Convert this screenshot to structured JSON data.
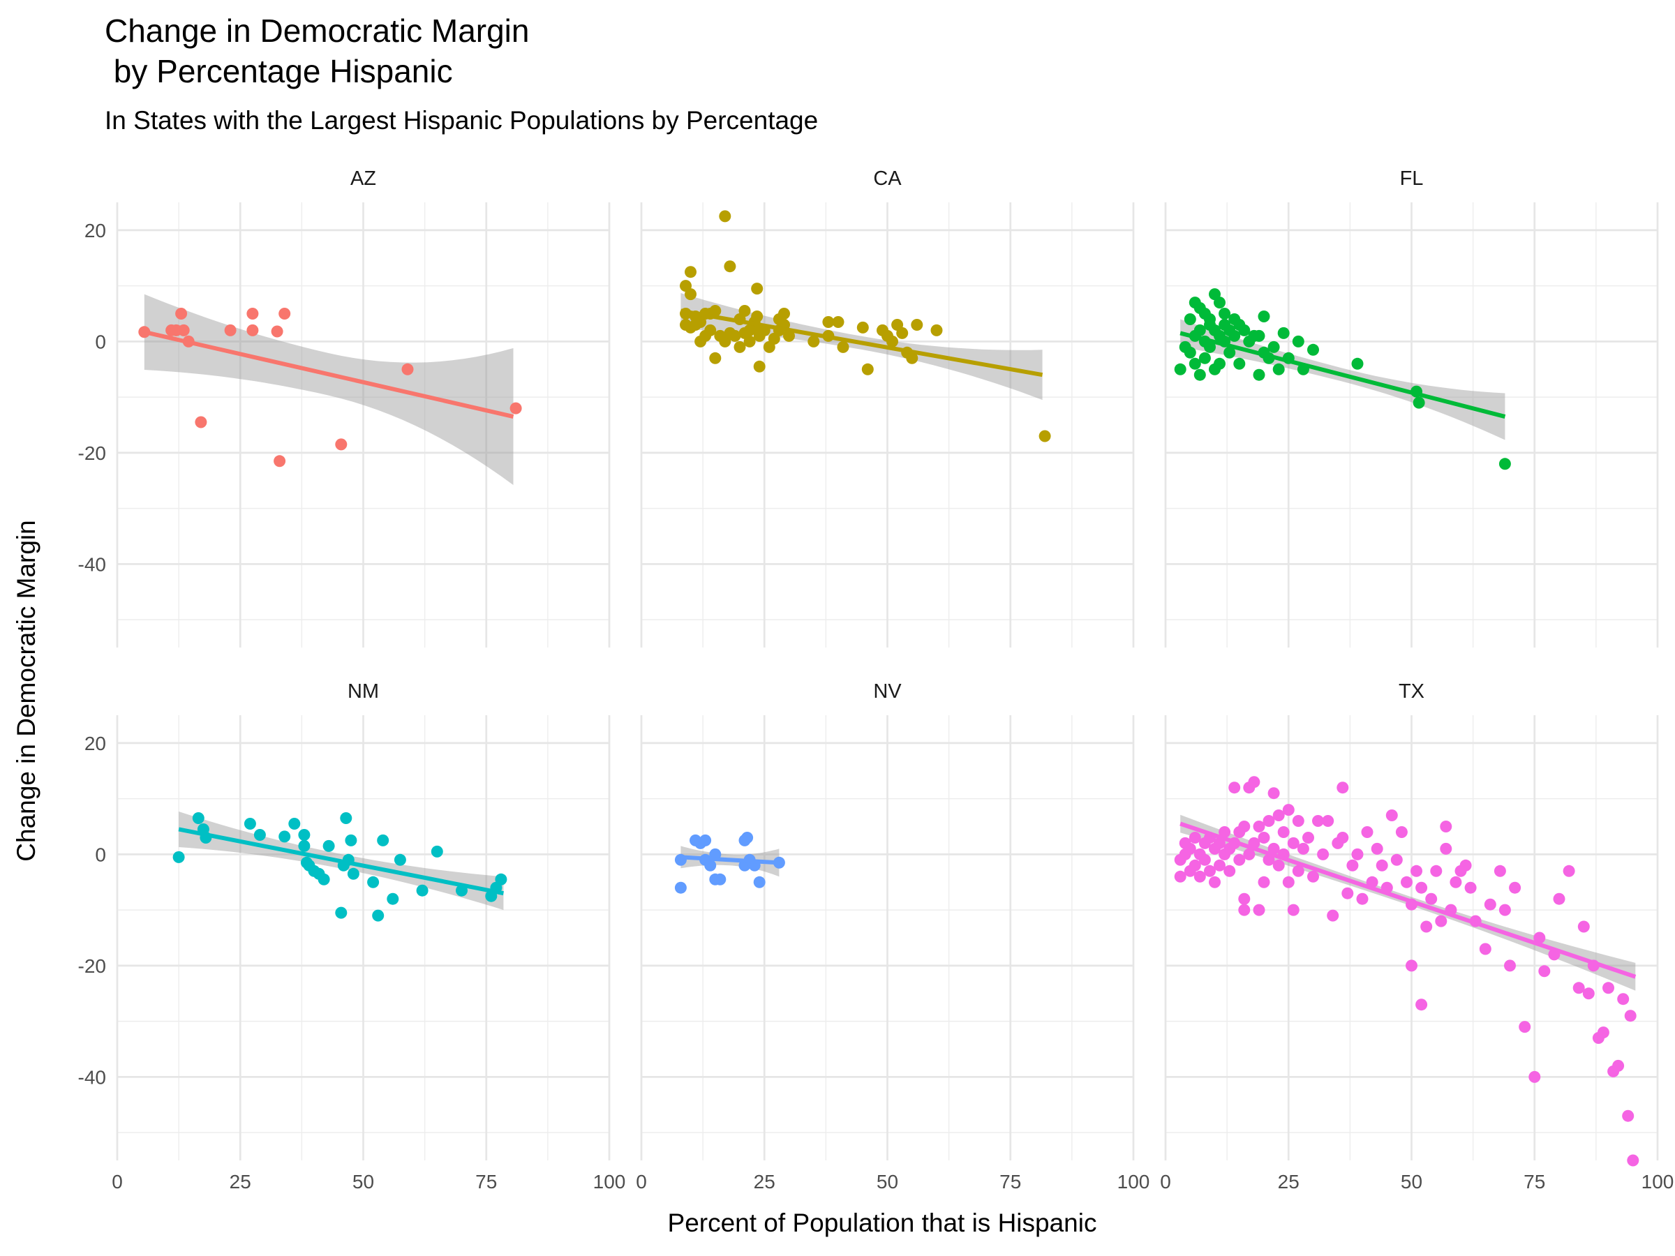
{
  "chart_data": {
    "type": "scatter",
    "title": "Change in Democratic Margin\n by Percentage Hispanic",
    "subtitle": "In States with the Largest Hispanic Populations by Percentage",
    "xlabel": "Percent of Population that is Hispanic",
    "ylabel": "Change in Democratic Margin",
    "xlim": [
      0,
      100
    ],
    "ylim": [
      -55,
      25
    ],
    "x_ticks": [
      0,
      25,
      50,
      75,
      100
    ],
    "y_ticks": [
      20,
      0,
      -20,
      -40
    ],
    "grid": true,
    "legend": "none",
    "facets": [
      {
        "name": "AZ",
        "color": "#F8766D",
        "fit": {
          "x0": 5.5,
          "y0": 1.7,
          "x1": 80.5,
          "y1": -13.5,
          "ci0": 6.8,
          "cimid": 3.8,
          "ci1": 12.3
        },
        "points": [
          [
            5.5,
            1.7
          ],
          [
            11,
            2
          ],
          [
            12,
            2
          ],
          [
            13,
            5
          ],
          [
            13.5,
            2
          ],
          [
            14.5,
            0
          ],
          [
            17,
            -14.5
          ],
          [
            23,
            2
          ],
          [
            27.5,
            2
          ],
          [
            27.5,
            5
          ],
          [
            32.5,
            1.8
          ],
          [
            33,
            -21.5
          ],
          [
            34,
            5
          ],
          [
            45.5,
            -18.5
          ],
          [
            59,
            -5
          ],
          [
            81,
            -12
          ]
        ]
      },
      {
        "name": "CA",
        "color": "#B79F00",
        "fit": {
          "x0": 8,
          "y0": 5.5,
          "x1": 81.5,
          "y1": -6,
          "ci0": 3.2,
          "cimid": 1.2,
          "ci1": 4.5
        },
        "points": [
          [
            17,
            22.5
          ],
          [
            18,
            13.5
          ],
          [
            10,
            12.5
          ],
          [
            9,
            10
          ],
          [
            23.5,
            9.5
          ],
          [
            10,
            8.5
          ],
          [
            9,
            5
          ],
          [
            11,
            4.5
          ],
          [
            12,
            3.5
          ],
          [
            13,
            5
          ],
          [
            14,
            5
          ],
          [
            15,
            5.5
          ],
          [
            9,
            3
          ],
          [
            10,
            2.5
          ],
          [
            11,
            3
          ],
          [
            12,
            0
          ],
          [
            13,
            1
          ],
          [
            14,
            2
          ],
          [
            15,
            -3
          ],
          [
            16,
            1
          ],
          [
            17,
            0
          ],
          [
            18,
            1.5
          ],
          [
            19,
            1
          ],
          [
            20,
            4
          ],
          [
            20,
            -1
          ],
          [
            21,
            5.5
          ],
          [
            21,
            1.5
          ],
          [
            22,
            2
          ],
          [
            22,
            0
          ],
          [
            23,
            2.5
          ],
          [
            23,
            3.5
          ],
          [
            23.5,
            4.5
          ],
          [
            24,
            -4.5
          ],
          [
            24,
            1
          ],
          [
            25,
            2
          ],
          [
            26,
            -1
          ],
          [
            27,
            0.5
          ],
          [
            28,
            2
          ],
          [
            28,
            4
          ],
          [
            29,
            5
          ],
          [
            29,
            3
          ],
          [
            30,
            1
          ],
          [
            35,
            0
          ],
          [
            38,
            3.5
          ],
          [
            38,
            1
          ],
          [
            40,
            3.5
          ],
          [
            41,
            -1
          ],
          [
            45,
            2.5
          ],
          [
            46,
            -5
          ],
          [
            49,
            2
          ],
          [
            50,
            1
          ],
          [
            51,
            0
          ],
          [
            52,
            3
          ],
          [
            53,
            1.5
          ],
          [
            54,
            -2
          ],
          [
            55,
            -3
          ],
          [
            56,
            3
          ],
          [
            60,
            2
          ],
          [
            82,
            -17
          ]
        ]
      },
      {
        "name": "FL",
        "color": "#00BA38",
        "fit": {
          "x0": 3,
          "y0": 1.5,
          "x1": 69,
          "y1": -13.5,
          "ci0": 2.5,
          "cimid": 1.2,
          "ci1": 4.2
        },
        "points": [
          [
            3,
            -5
          ],
          [
            4,
            -1
          ],
          [
            5,
            4
          ],
          [
            5,
            -2
          ],
          [
            6,
            7
          ],
          [
            6,
            1
          ],
          [
            6,
            -4
          ],
          [
            7,
            6
          ],
          [
            7,
            2
          ],
          [
            7,
            -6
          ],
          [
            8,
            5
          ],
          [
            8,
            0
          ],
          [
            8,
            -3
          ],
          [
            9,
            4
          ],
          [
            9,
            3
          ],
          [
            9,
            -1
          ],
          [
            10,
            8.5
          ],
          [
            10,
            2
          ],
          [
            10,
            -5
          ],
          [
            11,
            7
          ],
          [
            11,
            1
          ],
          [
            11,
            -4
          ],
          [
            12,
            5
          ],
          [
            12,
            3
          ],
          [
            12,
            0
          ],
          [
            13,
            2
          ],
          [
            13,
            -2
          ],
          [
            14,
            4
          ],
          [
            14,
            1
          ],
          [
            15,
            -4
          ],
          [
            15,
            3
          ],
          [
            16,
            2
          ],
          [
            17,
            0
          ],
          [
            18,
            1
          ],
          [
            19,
            -6
          ],
          [
            19,
            1
          ],
          [
            20,
            4.5
          ],
          [
            20,
            -2
          ],
          [
            21,
            -3
          ],
          [
            22,
            -1
          ],
          [
            23,
            -5
          ],
          [
            24,
            1.5
          ],
          [
            25,
            -3
          ],
          [
            27,
            0
          ],
          [
            28,
            -5
          ],
          [
            30,
            -1.5
          ],
          [
            39,
            -4
          ],
          [
            51,
            -9
          ],
          [
            51.5,
            -11
          ],
          [
            69,
            -22
          ]
        ]
      },
      {
        "name": "NM",
        "color": "#00BFC4",
        "fit": {
          "x0": 12.5,
          "y0": 4.5,
          "x1": 78.5,
          "y1": -7,
          "ci0": 3.2,
          "cimid": 1.3,
          "ci1": 3.0
        },
        "points": [
          [
            12.5,
            -0.5
          ],
          [
            16.5,
            6.5
          ],
          [
            17.5,
            4.5
          ],
          [
            18,
            3
          ],
          [
            27,
            5.5
          ],
          [
            29,
            3.5
          ],
          [
            34,
            3.2
          ],
          [
            36,
            5.5
          ],
          [
            38,
            3.5
          ],
          [
            38,
            1.5
          ],
          [
            38.5,
            -1.5
          ],
          [
            39,
            -2
          ],
          [
            40,
            -3
          ],
          [
            41,
            -3.5
          ],
          [
            42,
            -4.5
          ],
          [
            43,
            1.5
          ],
          [
            45.5,
            -10.5
          ],
          [
            46,
            -2
          ],
          [
            46.5,
            6.5
          ],
          [
            47,
            -1
          ],
          [
            47.5,
            2.5
          ],
          [
            48,
            -3.5
          ],
          [
            52,
            -5
          ],
          [
            53,
            -11
          ],
          [
            54,
            2.5
          ],
          [
            56,
            -8
          ],
          [
            57.5,
            -1
          ],
          [
            62,
            -6.5
          ],
          [
            65,
            0.5
          ],
          [
            70,
            -6.5
          ],
          [
            76,
            -7.5
          ],
          [
            77,
            -6
          ],
          [
            78,
            -4.5
          ]
        ]
      },
      {
        "name": "NV",
        "color": "#619CFF",
        "fit": {
          "x0": 8,
          "y0": -0.5,
          "x1": 28,
          "y1": -1.5,
          "ci0": 2.0,
          "cimid": 1.0,
          "ci1": 2.5
        },
        "points": [
          [
            8,
            -1
          ],
          [
            8,
            -6
          ],
          [
            11,
            2.5
          ],
          [
            12,
            2
          ],
          [
            13,
            2.5
          ],
          [
            13,
            -1
          ],
          [
            14,
            -2
          ],
          [
            15,
            0
          ],
          [
            15,
            -4.5
          ],
          [
            16,
            -4.5
          ],
          [
            21,
            2.5
          ],
          [
            21,
            -2
          ],
          [
            21.5,
            3
          ],
          [
            22,
            -1
          ],
          [
            23,
            -2
          ],
          [
            24,
            -5
          ],
          [
            28,
            -1.5
          ]
        ]
      },
      {
        "name": "TX",
        "color": "#F564E3",
        "fit": {
          "x0": 3,
          "y0": 5.5,
          "x1": 95.5,
          "y1": -22,
          "ci0": 1.6,
          "cimid": 0.8,
          "ci1": 2.5
        },
        "points": [
          [
            3,
            -1
          ],
          [
            3,
            -4
          ],
          [
            4,
            2
          ],
          [
            4,
            0
          ],
          [
            5,
            1
          ],
          [
            5,
            -3
          ],
          [
            6,
            3
          ],
          [
            6,
            -2
          ],
          [
            7,
            0
          ],
          [
            7,
            -4
          ],
          [
            8,
            2
          ],
          [
            8,
            -1
          ],
          [
            9,
            3
          ],
          [
            9,
            -3
          ],
          [
            10,
            1
          ],
          [
            10,
            -5
          ],
          [
            11,
            2
          ],
          [
            11,
            -2
          ],
          [
            12,
            4
          ],
          [
            12,
            0
          ],
          [
            13,
            1
          ],
          [
            13,
            -3
          ],
          [
            14,
            12
          ],
          [
            14,
            2
          ],
          [
            15,
            -1
          ],
          [
            15,
            4
          ],
          [
            16,
            5
          ],
          [
            16,
            -8
          ],
          [
            16,
            -10
          ],
          [
            17,
            0
          ],
          [
            17,
            12
          ],
          [
            18,
            13
          ],
          [
            18,
            2
          ],
          [
            19,
            -10
          ],
          [
            19,
            5
          ],
          [
            20,
            3
          ],
          [
            20,
            -5
          ],
          [
            21,
            6
          ],
          [
            21,
            -1
          ],
          [
            22,
            11
          ],
          [
            22,
            1
          ],
          [
            23,
            7
          ],
          [
            23,
            -2
          ],
          [
            24,
            4
          ],
          [
            24,
            0
          ],
          [
            25,
            8
          ],
          [
            25,
            -5
          ],
          [
            26,
            2
          ],
          [
            26,
            -10
          ],
          [
            27,
            6
          ],
          [
            27,
            -3
          ],
          [
            28,
            1
          ],
          [
            29,
            3
          ],
          [
            30,
            -4
          ],
          [
            31,
            6
          ],
          [
            32,
            0
          ],
          [
            33,
            6
          ],
          [
            34,
            -11
          ],
          [
            35,
            2
          ],
          [
            36,
            12
          ],
          [
            36,
            3
          ],
          [
            37,
            -7
          ],
          [
            38,
            -2
          ],
          [
            39,
            0
          ],
          [
            40,
            -8
          ],
          [
            41,
            4
          ],
          [
            42,
            -5
          ],
          [
            43,
            1
          ],
          [
            44,
            -2
          ],
          [
            45,
            -6
          ],
          [
            46,
            7
          ],
          [
            47,
            -1
          ],
          [
            48,
            4
          ],
          [
            49,
            -5
          ],
          [
            50,
            -9
          ],
          [
            50,
            -20
          ],
          [
            51,
            -3
          ],
          [
            52,
            -27
          ],
          [
            52,
            -6
          ],
          [
            53,
            -13
          ],
          [
            54,
            -8
          ],
          [
            55,
            -3
          ],
          [
            56,
            -12
          ],
          [
            57,
            5
          ],
          [
            57,
            1
          ],
          [
            58,
            -10
          ],
          [
            59,
            -5
          ],
          [
            60,
            -3
          ],
          [
            61,
            -2
          ],
          [
            62,
            -6
          ],
          [
            63,
            -12
          ],
          [
            65,
            -17
          ],
          [
            66,
            -9
          ],
          [
            68,
            -3
          ],
          [
            69,
            -10
          ],
          [
            70,
            -20
          ],
          [
            71,
            -6
          ],
          [
            73,
            -31
          ],
          [
            75,
            -40
          ],
          [
            76,
            -15
          ],
          [
            77,
            -21
          ],
          [
            79,
            -18
          ],
          [
            80,
            -8
          ],
          [
            82,
            -3
          ],
          [
            84,
            -24
          ],
          [
            85,
            -13
          ],
          [
            86,
            -25
          ],
          [
            87,
            -20
          ],
          [
            88,
            -33
          ],
          [
            89,
            -32
          ],
          [
            90,
            -24
          ],
          [
            91,
            -39
          ],
          [
            92,
            -38
          ],
          [
            93,
            -26
          ],
          [
            94,
            -47
          ],
          [
            94.5,
            -29
          ],
          [
            95,
            -55
          ]
        ]
      }
    ]
  }
}
